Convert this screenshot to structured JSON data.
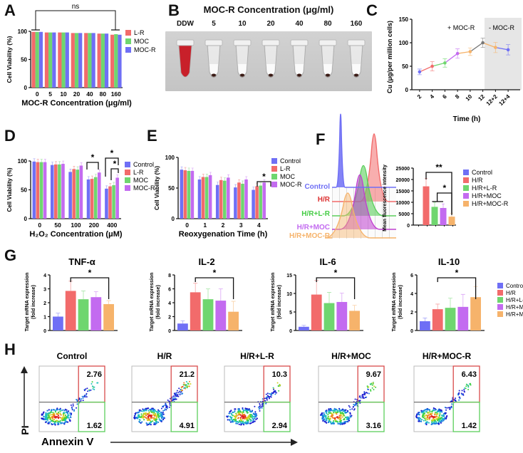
{
  "colors": {
    "control": "#6f6ff5",
    "lr": "#f26b6b",
    "moc": "#6fd66f",
    "mocr": "#c36bf0",
    "hrmocr": "#f6b36b",
    "hr": "#f26b6b",
    "blood": "#c8202a",
    "gate_red": "#d94b4b",
    "gate_green": "#5ccf5c",
    "shade": "#e6e6e6"
  },
  "panels": {
    "A": "A",
    "B": "B",
    "C": "C",
    "D": "D",
    "E": "E",
    "F": "F",
    "G": "G",
    "H": "H"
  },
  "chart_data": [
    {
      "id": "A",
      "type": "bar",
      "title": "",
      "xlabel": "MOC-R Concentration (μg/ml)",
      "ylabel": "Cell Viability (%)",
      "ylim": [
        0,
        100
      ],
      "yticks": [
        "0",
        "50",
        "100"
      ],
      "categories": [
        "0",
        "5",
        "10",
        "20",
        "40",
        "80",
        "160"
      ],
      "series": [
        {
          "name": "L-R",
          "values": [
            99,
            98,
            98,
            97,
            97,
            96,
            94
          ]
        },
        {
          "name": "MOC",
          "values": [
            99,
            98,
            98,
            97,
            97,
            96,
            95
          ]
        },
        {
          "name": "MOC-R",
          "values": [
            99,
            98,
            98,
            97,
            97,
            96,
            94
          ]
        }
      ],
      "legend": [
        "L-R",
        "MOC",
        "MOC-R"
      ],
      "legend_position": "right",
      "annotation": "ns"
    },
    {
      "id": "B",
      "type": "image",
      "title": "MOC-R Concentration (μg/ml)",
      "labels": [
        "DDW",
        "5",
        "10",
        "20",
        "40",
        "80",
        "160"
      ]
    },
    {
      "id": "C",
      "type": "line",
      "xlabel": "Time (h)",
      "ylabel": "Cu (μg/per million cells)",
      "ylim": [
        0,
        150
      ],
      "yticks": [
        "0",
        "50",
        "100",
        "150"
      ],
      "categories": [
        "2",
        "4",
        "6",
        "8",
        "10",
        "12",
        "12+2",
        "12+4"
      ],
      "values": [
        38,
        50,
        57,
        77,
        81,
        100,
        90,
        85
      ],
      "errors": [
        6,
        10,
        9,
        10,
        8,
        10,
        11,
        11
      ],
      "annotations": [
        "+ MOC-R",
        "- MOC-R"
      ]
    },
    {
      "id": "D",
      "type": "bar",
      "xlabel": "H₂O₂ Concentration (μM)",
      "ylabel": "Cell Viability (%)",
      "ylim": [
        0,
        100
      ],
      "yticks": [
        "0",
        "50",
        "100"
      ],
      "categories": [
        "0",
        "50",
        "100",
        "200",
        "400"
      ],
      "series": [
        {
          "name": "Control",
          "values": [
            99,
            93,
            81,
            68,
            52
          ]
        },
        {
          "name": "L-R",
          "values": [
            98,
            94,
            86,
            69,
            56
          ]
        },
        {
          "name": "MOC",
          "values": [
            98,
            94,
            85,
            72,
            58
          ]
        },
        {
          "name": "MOC-R",
          "values": [
            98,
            95,
            92,
            80,
            71
          ]
        }
      ],
      "legend": [
        "Control",
        "L-R",
        "MOC",
        "MOC-R"
      ],
      "legend_position": "right",
      "significance": [
        "*",
        "*",
        "*"
      ]
    },
    {
      "id": "E",
      "type": "bar",
      "xlabel": "Reoxygenation Time (h)",
      "ylabel": "Cell Viability (%)",
      "ylim": [
        0,
        100
      ],
      "yticks": [
        "0",
        "50",
        "100"
      ],
      "categories": [
        "0",
        "1",
        "2",
        "3",
        "4"
      ],
      "series": [
        {
          "name": "Control",
          "values": [
            80,
            64,
            55,
            51,
            47
          ]
        },
        {
          "name": "L-R",
          "values": [
            79,
            68,
            63,
            59,
            53
          ]
        },
        {
          "name": "MOC",
          "values": [
            78,
            68,
            62,
            57,
            54
          ]
        },
        {
          "name": "MOC-R",
          "values": [
            78,
            71,
            67,
            64,
            59
          ]
        }
      ],
      "legend": [
        "Control",
        "L-R",
        "MOC",
        "MOC-R"
      ],
      "legend_position": "right",
      "significance": [
        "*"
      ]
    },
    {
      "id": "F-hist",
      "type": "histogram-overlay",
      "labels": [
        "Control",
        "H/R",
        "H/R+L-R",
        "H/R+MOC",
        "H/R+MOC-R"
      ]
    },
    {
      "id": "F",
      "type": "bar",
      "ylabel": "Mean fluorescence intensity",
      "ylim": [
        0,
        25000
      ],
      "yticks": [
        "0",
        "5000",
        "10000",
        "15000",
        "20000",
        "25000"
      ],
      "categories": [
        "Control",
        "H/R",
        "H/R+L-R",
        "H/R+MOC",
        "H/R+MOC-R"
      ],
      "values": [
        0,
        17000,
        8000,
        7500,
        3700
      ],
      "errors": [
        0,
        3500,
        2000,
        1800,
        1500
      ],
      "legend": [
        "Control",
        "H/R",
        "H/R+L-R",
        "H/R+MOC",
        "H/R+MOC-R"
      ],
      "legend_position": "right",
      "significance": [
        "**",
        "*"
      ]
    },
    {
      "id": "G1",
      "type": "bar",
      "title": "TNF-α",
      "ylabel": "Target mRNA expression (fold increase)",
      "ylim": [
        0,
        4
      ],
      "yticks": [
        "0",
        "1",
        "2",
        "3",
        "4"
      ],
      "categories": [
        "Control",
        "H/R",
        "H/R+L-R",
        "H/R+MOC",
        "H/R+MOC-R"
      ],
      "values": [
        1.0,
        2.85,
        2.25,
        2.4,
        1.9
      ],
      "errors": [
        0.25,
        0.7,
        0.6,
        0.4,
        0.25
      ],
      "significance": [
        "*"
      ]
    },
    {
      "id": "G2",
      "type": "bar",
      "title": "IL-2",
      "ylabel": "Target mRNA expression (fold increase)",
      "ylim": [
        0,
        8
      ],
      "yticks": [
        "0",
        "2",
        "4",
        "6",
        "8"
      ],
      "categories": [
        "Control",
        "H/R",
        "H/R+L-R",
        "H/R+MOC",
        "H/R+MOC-R"
      ],
      "values": [
        1.0,
        5.5,
        4.5,
        4.3,
        2.7
      ],
      "errors": [
        0.4,
        1.3,
        1.5,
        1.7,
        1.5
      ],
      "significance": [
        "*"
      ]
    },
    {
      "id": "G3",
      "type": "bar",
      "title": "IL-6",
      "ylabel": "Target mRNA expression (fold increase)",
      "ylim": [
        0,
        15
      ],
      "yticks": [
        "0",
        "5",
        "10",
        "15"
      ],
      "categories": [
        "Control",
        "H/R",
        "H/R+L-R",
        "H/R+MOC",
        "H/R+MOC-R"
      ],
      "values": [
        1.0,
        9.7,
        7.4,
        7.7,
        5.3
      ],
      "errors": [
        0.4,
        3.8,
        2.9,
        2.4,
        1.5
      ],
      "significance": [
        "*"
      ]
    },
    {
      "id": "G4",
      "type": "bar",
      "title": "IL-10",
      "ylabel": "Target mRNA expression (fold increase)",
      "ylim": [
        0,
        6
      ],
      "yticks": [
        "0",
        "2",
        "4",
        "6"
      ],
      "categories": [
        "Control",
        "H/R",
        "H/R+L-R",
        "H/R+MOC",
        "H/R+MOC-R"
      ],
      "values": [
        1.0,
        2.3,
        2.45,
        2.55,
        3.6
      ],
      "errors": [
        0.35,
        0.55,
        1.05,
        1.35,
        1.15
      ],
      "legend": [
        "Control",
        "H/R",
        "H/R+L-R",
        "H/R+MOC",
        "H/R+MOC-R"
      ],
      "legend_position": "right",
      "significance": [
        "*"
      ]
    },
    {
      "id": "H",
      "type": "scatter-flow",
      "xlabel": "Annexin V",
      "ylabel": "PI",
      "plots": [
        {
          "title": "Control",
          "upper_right": "2.76",
          "lower_right": "1.62"
        },
        {
          "title": "H/R",
          "upper_right": "21.2",
          "lower_right": "4.91"
        },
        {
          "title": "H/R+L-R",
          "upper_right": "10.3",
          "lower_right": "2.94"
        },
        {
          "title": "H/R+MOC",
          "upper_right": "9.67",
          "lower_right": "3.16"
        },
        {
          "title": "H/R+MOC-R",
          "upper_right": "6.43",
          "lower_right": "1.42"
        }
      ]
    }
  ]
}
